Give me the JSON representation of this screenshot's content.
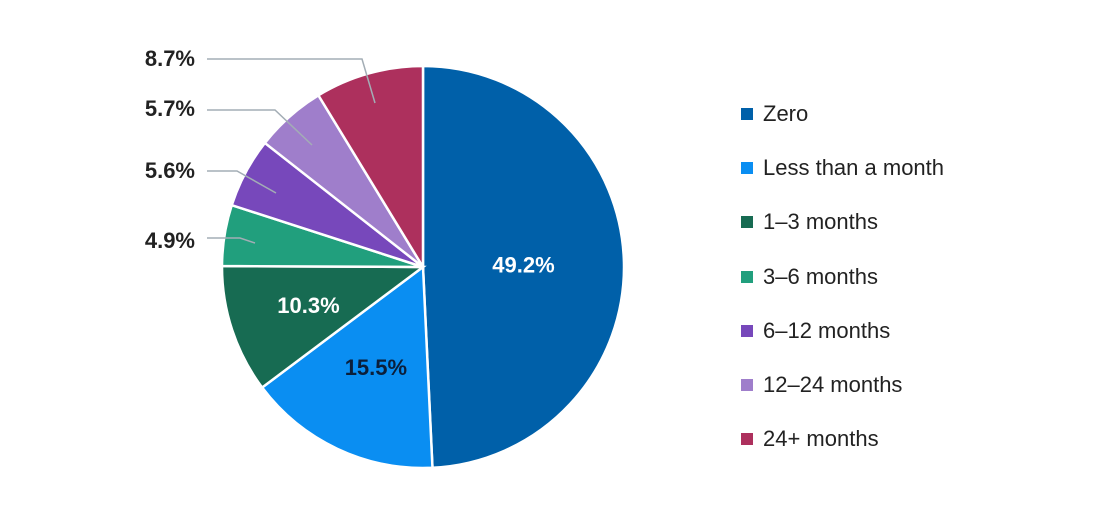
{
  "chart_data": {
    "type": "pie",
    "start": "top",
    "direction": "clockwise",
    "slices": [
      {
        "label": "Zero",
        "value": 49.2,
        "display": "49.2%",
        "color": "#0060a9",
        "label_pos": "inside",
        "label_color": "#ffffff"
      },
      {
        "label": "Less than a month",
        "value": 15.5,
        "display": "15.5%",
        "color": "#0a8ef2",
        "label_pos": "inside",
        "label_color": "#0b1f3a"
      },
      {
        "label": "1–3 months",
        "value": 10.3,
        "display": "10.3%",
        "color": "#176b52",
        "label_pos": "inside",
        "label_color": "#ffffff"
      },
      {
        "label": "3–6 months",
        "value": 4.9,
        "display": "4.9%",
        "color": "#219f7d",
        "label_pos": "outside",
        "label_color": "#222222"
      },
      {
        "label": "6–12 months",
        "value": 5.6,
        "display": "5.6%",
        "color": "#7748bb",
        "label_pos": "outside",
        "label_color": "#222222"
      },
      {
        "label": "12–24 months",
        "value": 5.7,
        "display": "5.7%",
        "color": "#9f7ecb",
        "label_pos": "outside",
        "label_color": "#222222"
      },
      {
        "label": "24+ months",
        "value": 8.7,
        "display": "8.7%",
        "color": "#ad305d",
        "label_pos": "outside",
        "label_color": "#222222"
      }
    ],
    "legend_position": "right",
    "leader_line_color": "#a3adb5"
  }
}
